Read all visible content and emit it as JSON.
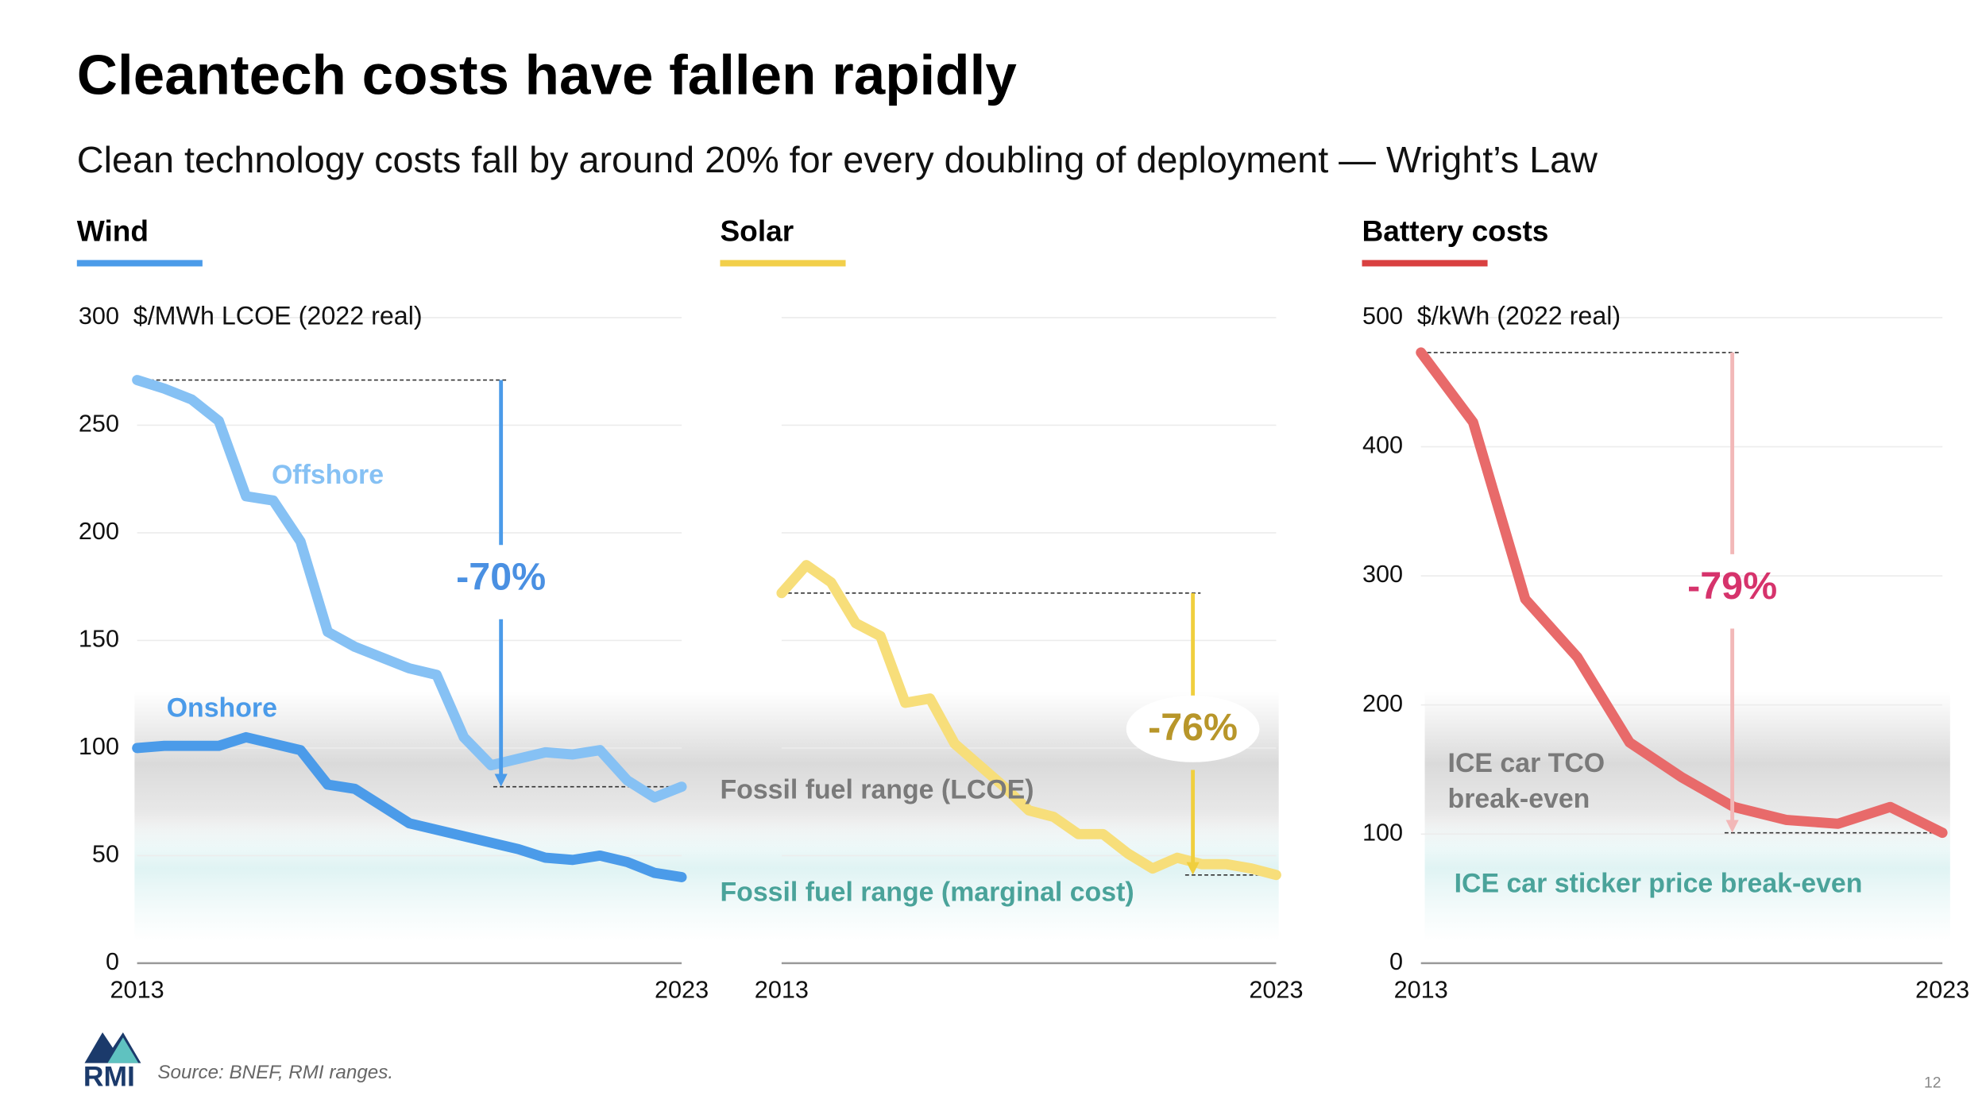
{
  "header": {
    "title": "Cleantech costs have fallen rapidly",
    "subtitle": "Clean technology costs fall by around 20% for every doubling of deployment — Wright’s Law"
  },
  "chart_data": [
    {
      "type": "line",
      "title": "Wind",
      "accent_color": "#4b9be9",
      "ylabel": "$/MWh LCOE (2022 real)",
      "x": [
        2013,
        2013.5,
        2014,
        2014.5,
        2015,
        2015.5,
        2016,
        2016.5,
        2017,
        2017.5,
        2018,
        2018.5,
        2019,
        2019.5,
        2020,
        2020.5,
        2021,
        2021.5,
        2022,
        2022.5,
        2023
      ],
      "xlim": [
        2013,
        2023
      ],
      "xticks": [
        2013,
        2023
      ],
      "ylim": [
        0,
        300
      ],
      "yticks": [
        0,
        50,
        100,
        150,
        200,
        250,
        300
      ],
      "grid": true,
      "series": [
        {
          "name": "Offshore",
          "color": "#86c1f4",
          "values": [
            271,
            267,
            262,
            252,
            217,
            215,
            196,
            154,
            147,
            142,
            137,
            134,
            105,
            92,
            95,
            98,
            97,
            99,
            85,
            77,
            82
          ]
        },
        {
          "name": "Onshore",
          "color": "#4b9be9",
          "values": [
            100,
            101,
            101,
            101,
            105,
            102,
            99,
            83,
            81,
            73,
            65,
            62,
            59,
            56,
            53,
            49,
            48,
            50,
            47,
            42,
            40
          ]
        }
      ],
      "annotations": [
        "-70%"
      ],
      "arrow_color": "#4b9be9",
      "arrow_label_color": "#4a90e2"
    },
    {
      "type": "line",
      "title": "Solar",
      "accent_color": "#f2cf4a",
      "x": [
        2013,
        2013.5,
        2014,
        2014.5,
        2015,
        2015.5,
        2016,
        2016.5,
        2017,
        2017.5,
        2018,
        2018.5,
        2019,
        2019.5,
        2020,
        2020.5,
        2021,
        2021.5,
        2022,
        2022.5,
        2023
      ],
      "xlim": [
        2013,
        2023
      ],
      "xticks": [
        2013,
        2023
      ],
      "ylim": [
        0,
        300
      ],
      "color": "#f7de7a",
      "values": [
        172,
        185,
        177,
        158,
        152,
        121,
        123,
        102,
        92,
        82,
        71,
        68,
        60,
        60,
        51,
        44,
        49,
        46,
        46,
        44,
        41
      ],
      "annotations": [
        "-76%",
        "Fossil fuel range (LCOE)",
        "Fossil fuel range (marginal cost)"
      ],
      "arrow_color": "#f0cf3e",
      "arrow_label_color": "#b8962a"
    },
    {
      "type": "line",
      "title": "Battery costs",
      "accent_color": "#d94040",
      "ylabel": "$/kWh (2022 real)",
      "x": [
        2013,
        2014,
        2015,
        2016,
        2017,
        2018,
        2019,
        2020,
        2021,
        2022,
        2023
      ],
      "xlim": [
        2013,
        2023
      ],
      "xticks": [
        2013,
        2023
      ],
      "ylim": [
        0,
        500
      ],
      "yticks": [
        0,
        100,
        200,
        300,
        400,
        500
      ],
      "grid": true,
      "color": "#e86a6a",
      "values": [
        473,
        419,
        282,
        237,
        171,
        144,
        121,
        111,
        108,
        121,
        101
      ],
      "annotations": [
        "-79%",
        "ICE car TCO",
        "break-even",
        "ICE car sticker price break-even"
      ],
      "arrow_color": "#f2b8b8",
      "arrow_label_color": "#d6336c"
    }
  ],
  "footer": {
    "logo": "RMI",
    "source": "Source: BNEF, RMI ranges.",
    "page": "12"
  }
}
